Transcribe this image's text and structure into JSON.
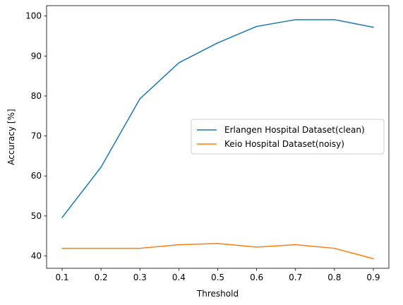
{
  "chart_data": {
    "type": "line",
    "title": "",
    "xlabel": "Threshold",
    "ylabel": "Accuracy [%]",
    "xlim": [
      0.06,
      0.94
    ],
    "ylim": [
      36.9,
      102.6
    ],
    "x": [
      0.1,
      0.2,
      0.3,
      0.4,
      0.5,
      0.6,
      0.7,
      0.8,
      0.9
    ],
    "x_ticks": [
      0.1,
      0.2,
      0.3,
      0.4,
      0.5,
      0.6,
      0.7,
      0.8,
      0.9
    ],
    "x_tick_labels": [
      "0.1",
      "0.2",
      "0.3",
      "0.4",
      "0.5",
      "0.6",
      "0.7",
      "0.8",
      "0.9"
    ],
    "y_ticks": [
      40,
      50,
      60,
      70,
      80,
      90,
      100
    ],
    "y_tick_labels": [
      "40",
      "50",
      "60",
      "70",
      "80",
      "90",
      "100"
    ],
    "grid": false,
    "legend_position": "center-right",
    "series": [
      {
        "name": "Erlangen Hospital Dataset(clean)",
        "color": "#1f77b4",
        "values": [
          49.6,
          62.2,
          79.3,
          88.3,
          93.3,
          97.4,
          99.1,
          99.1,
          97.2
        ]
      },
      {
        "name": "Keio Hospital Dataset(noisy)",
        "color": "#ff7f0e",
        "values": [
          41.9,
          41.9,
          41.9,
          42.8,
          43.1,
          42.2,
          42.8,
          41.9,
          39.3
        ]
      }
    ]
  }
}
